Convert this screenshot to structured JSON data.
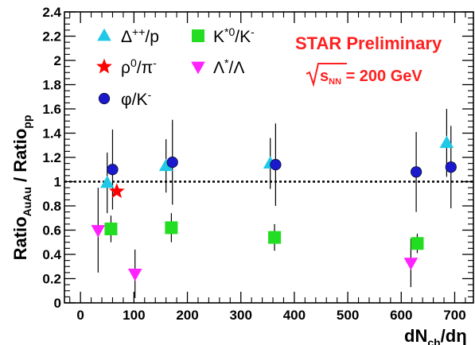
{
  "chart_data": {
    "type": "scatter",
    "xlabel": "dN_ch/dη",
    "ylabel": "Ratio_AuAu / Ratio_pp",
    "xlim": [
      -30,
      735
    ],
    "ylim": [
      0,
      2.4
    ],
    "x_ticks": [
      "0",
      "100",
      "200",
      "300",
      "400",
      "500",
      "600",
      "700"
    ],
    "y_ticks": [
      "0",
      "0.2",
      "0.4",
      "0.6",
      "0.8",
      "1",
      "1.2",
      "1.4",
      "1.6",
      "1.8",
      "2",
      "2.2",
      "2.4"
    ],
    "reference_line": {
      "y": 1,
      "style": "dotted"
    },
    "grid": false,
    "legend_position": "top-left",
    "annotations": [
      {
        "text": "STAR Preliminary",
        "color": "#ff2020"
      },
      {
        "text": "√s_NN = 200 GeV",
        "color": "#ff2020"
      }
    ],
    "series": [
      {
        "name": "Δ⁺⁺/p",
        "marker": "triangle-up",
        "color": "#1ec8e6",
        "points": [
          {
            "x": 50,
            "y": 0.99,
            "err": 0.25
          },
          {
            "x": 160,
            "y": 1.13,
            "err": 0.22
          },
          {
            "x": 355,
            "y": 1.15,
            "err": 0.21
          },
          {
            "x": 685,
            "y": 1.32,
            "err": 0.28
          }
        ]
      },
      {
        "name": "K*⁰/K⁻",
        "marker": "square",
        "color": "#22dd22",
        "points": [
          {
            "x": 57,
            "y": 0.61,
            "err": 0.11
          },
          {
            "x": 170,
            "y": 0.62,
            "err": 0.12
          },
          {
            "x": 363,
            "y": 0.54,
            "err": 0.11
          },
          {
            "x": 630,
            "y": 0.49,
            "err": 0.08
          }
        ]
      },
      {
        "name": "ρ⁰/π⁻",
        "marker": "star",
        "color": "#ff0000",
        "points": [
          {
            "x": 68,
            "y": 0.92,
            "err": 0.0
          }
        ]
      },
      {
        "name": "Λ*/Λ",
        "marker": "triangle-down",
        "color": "#ff22ff",
        "points": [
          {
            "x": 33,
            "y": 0.6,
            "err": 0.35
          },
          {
            "x": 102,
            "y": 0.24,
            "err": 0.2
          },
          {
            "x": 618,
            "y": 0.33,
            "err": 0.2
          }
        ]
      },
      {
        "name": "φ/K⁻",
        "marker": "circle",
        "color": "#1a1acc",
        "points": [
          {
            "x": 60,
            "y": 1.1,
            "err": 0.33
          },
          {
            "x": 172,
            "y": 1.16,
            "err": 0.35
          },
          {
            "x": 365,
            "y": 1.14,
            "err": 0.34
          },
          {
            "x": 628,
            "y": 1.08,
            "err": 0.33
          },
          {
            "x": 693,
            "y": 1.12,
            "err": 0.34
          }
        ]
      }
    ]
  }
}
